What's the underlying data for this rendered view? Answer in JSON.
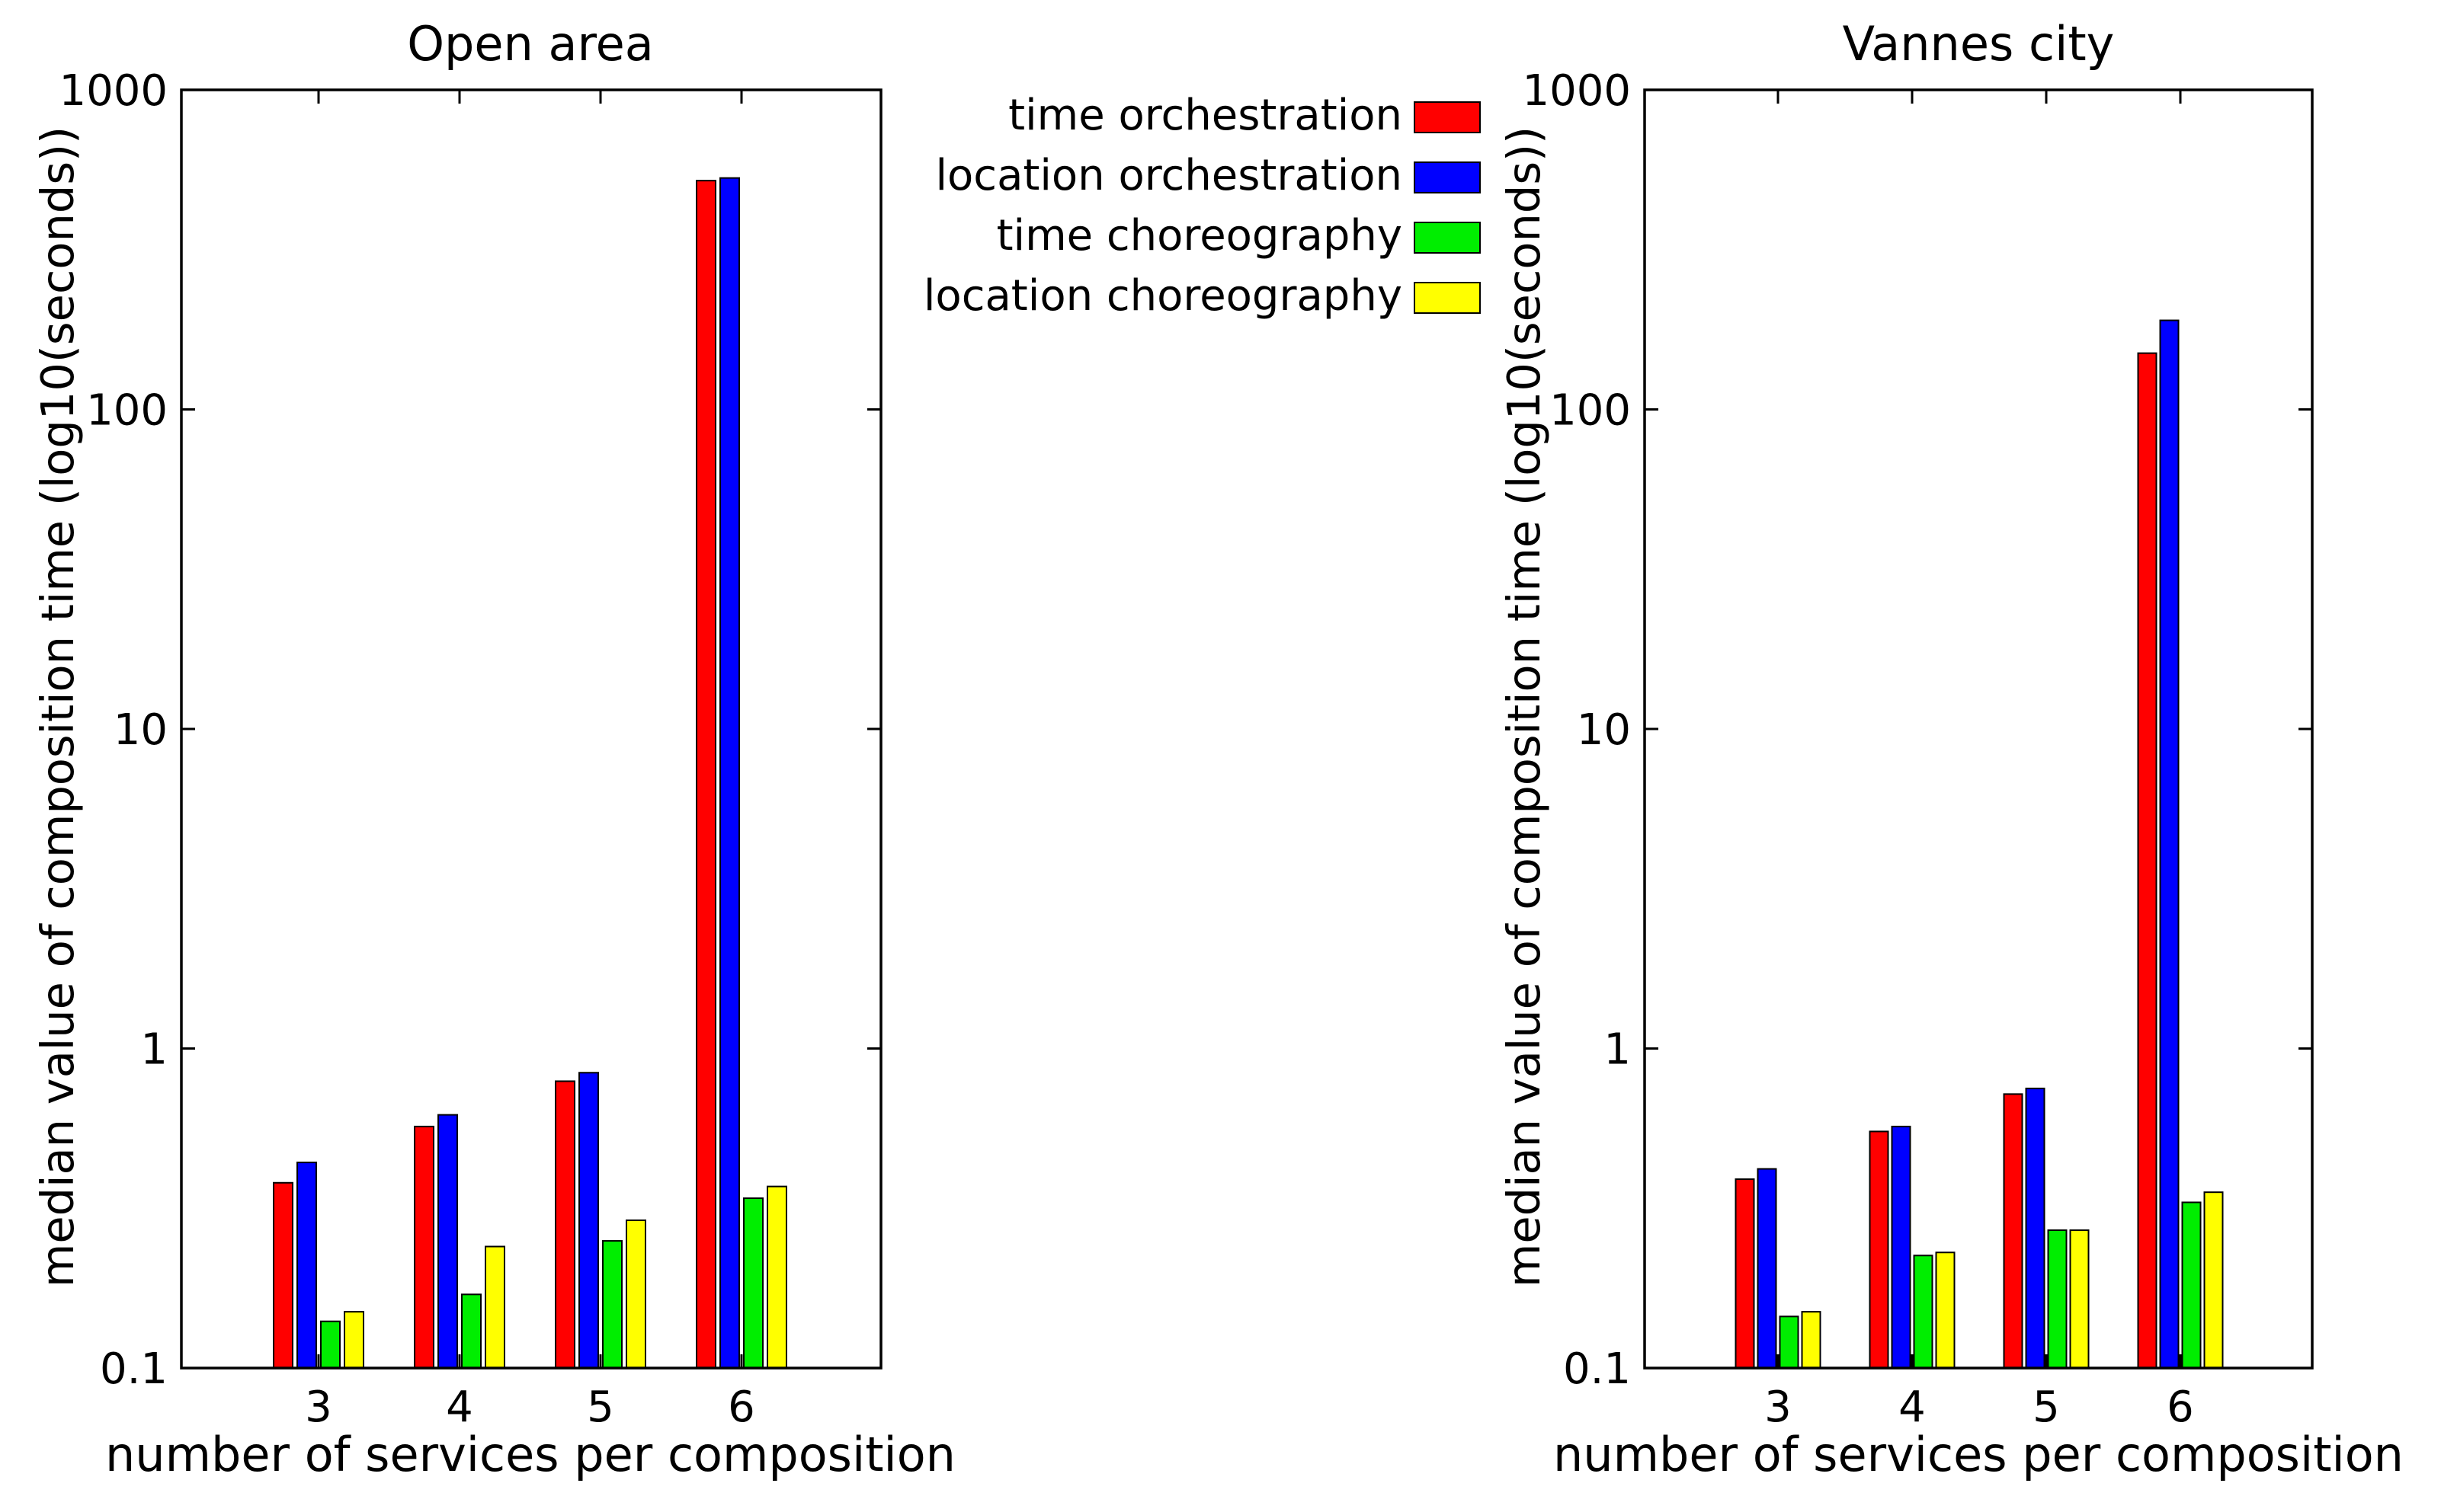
{
  "chart_data": [
    {
      "type": "bar",
      "title": "Open area",
      "xlabel": "number of services per composition",
      "ylabel": "median value of composition time (log10(seconds))",
      "yscale": "log",
      "ylim": [
        0.1,
        1000
      ],
      "yticks": [
        "0.1",
        "1",
        "10",
        "100",
        "1000"
      ],
      "categories": [
        "3",
        "4",
        "5",
        "6"
      ],
      "series": [
        {
          "name": "time orchestration",
          "color": "#ff0000",
          "values": [
            0.38,
            0.57,
            0.79,
            520
          ]
        },
        {
          "name": "location orchestration",
          "color": "#0000ff",
          "values": [
            0.44,
            0.62,
            0.84,
            530
          ]
        },
        {
          "name": "time choreography",
          "color": "#00ee00",
          "values": [
            0.14,
            0.17,
            0.25,
            0.34
          ]
        },
        {
          "name": "location choreography",
          "color": "#ffff00",
          "values": [
            0.15,
            0.24,
            0.29,
            0.37
          ]
        }
      ]
    },
    {
      "type": "bar",
      "title": "Vannes city",
      "xlabel": "number of services per composition",
      "ylabel": "median value of composition time (log10(seconds))",
      "yscale": "log",
      "ylim": [
        0.1,
        1000
      ],
      "yticks": [
        "0.1",
        "1",
        "10",
        "100",
        "1000"
      ],
      "categories": [
        "3",
        "4",
        "5",
        "6"
      ],
      "series": [
        {
          "name": "time orchestration",
          "color": "#ff0000",
          "values": [
            0.39,
            0.55,
            0.72,
            150
          ]
        },
        {
          "name": "location orchestration",
          "color": "#0000ff",
          "values": [
            0.42,
            0.57,
            0.75,
            190
          ]
        },
        {
          "name": "time choreography",
          "color": "#00ee00",
          "values": [
            0.145,
            0.225,
            0.27,
            0.33
          ]
        },
        {
          "name": "location choreography",
          "color": "#ffff00",
          "values": [
            0.15,
            0.23,
            0.27,
            0.355
          ]
        }
      ]
    }
  ],
  "legend": {
    "position": "top-center",
    "entries": [
      {
        "label": "time orchestration",
        "color": "#ff0000"
      },
      {
        "label": "location orchestration",
        "color": "#0000ff"
      },
      {
        "label": "time choreography",
        "color": "#00ee00"
      },
      {
        "label": "location choreography",
        "color": "#ffff00"
      }
    ]
  }
}
